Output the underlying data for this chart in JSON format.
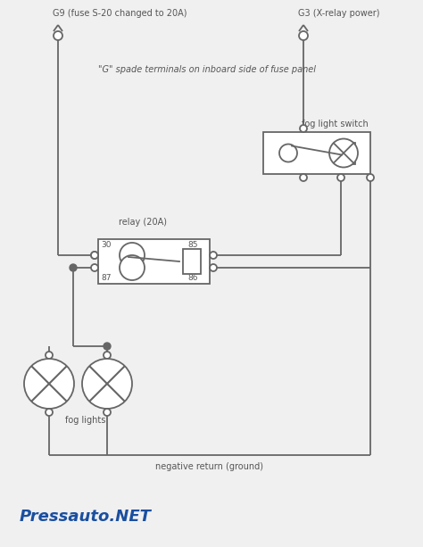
{
  "bg_color": "#f0f0f0",
  "line_color": "#666666",
  "text_color": "#555555",
  "title": "Pressauto.NET",
  "title_color": "#1a4fa0",
  "labels": {
    "g9": "G9 (fuse S-20 changed to 20A)",
    "g3": "G3 (X-relay power)",
    "spade": "\"G\" spade terminals on inboard side of fuse panel",
    "relay": "relay (20A)",
    "fog_light_switch": "fog light switch",
    "fog_lights": "fog lights",
    "ground": "negative return (ground)",
    "pin30": "30",
    "pin85": "85",
    "pin87": "87",
    "pin86": "86"
  }
}
